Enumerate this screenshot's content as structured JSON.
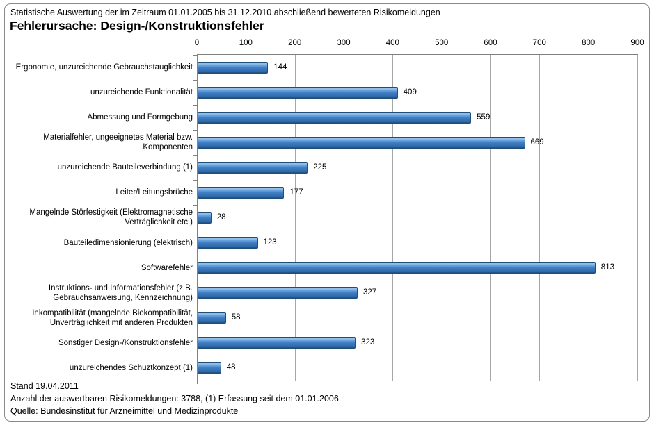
{
  "header": {
    "subtitle": "Statistische Auswertung der im Zeitraum 01.01.2005 bis 31.12.2010 abschließend bewerteten Risikomeldungen",
    "title": "Fehlerursache: Design-/Konstruktionsfehler"
  },
  "chart_data": {
    "type": "bar",
    "orientation": "horizontal",
    "title": "Fehlerursache: Design-/Konstruktionsfehler",
    "xlabel": "",
    "ylabel": "",
    "xlim": [
      0,
      900
    ],
    "x_ticks": [
      0,
      100,
      200,
      300,
      400,
      500,
      600,
      700,
      800,
      900
    ],
    "grid": true,
    "legend": "none",
    "data_labels": true,
    "categories": [
      "Ergonomie, unzureichende Gebrauchstauglichkeit",
      "unzureichende Funktionalität",
      "Abmessung und Formgebung",
      "Materialfehler, ungeeignetes Material bzw.\nKomponenten",
      "unzureichende Bauteileverbindung (1)",
      "Leiter/Leitungsbrüche",
      "Mangelnde Störfestigkeit (Elektromagnetische\nVerträglichkeit etc.)",
      "Bauteiledimensionierung (elektrisch)",
      "Softwarefehler",
      "Instruktions- und Informationsfehler (z.B.\nGebrauchsanweisung, Kennzeichnung)",
      "Inkompatibilität (mangelnde Biokompatibilität,\nUnverträglichkeit mit anderen Produkten",
      "Sonstiger Design-/Konstruktionsfehler",
      "unzureichendes Schuztkonzept (1)"
    ],
    "values": [
      144,
      409,
      559,
      669,
      225,
      177,
      28,
      123,
      813,
      327,
      58,
      323,
      48
    ],
    "colors": {
      "bar_main": "#3f7dc3",
      "bar_highlight": "#9cc6ee",
      "bar_edge": "#1f4e79",
      "gridline": "#a6a6a6",
      "axis": "#808080"
    }
  },
  "footer": {
    "line1": "Stand 19.04.2011",
    "line2": "Anzahl der auswertbaren Risikomeldungen: 3788, (1) Erfassung seit dem 01.01.2006",
    "line3": "Quelle: Bundesinstitut für Arzneimittel und Medizinprodukte"
  }
}
